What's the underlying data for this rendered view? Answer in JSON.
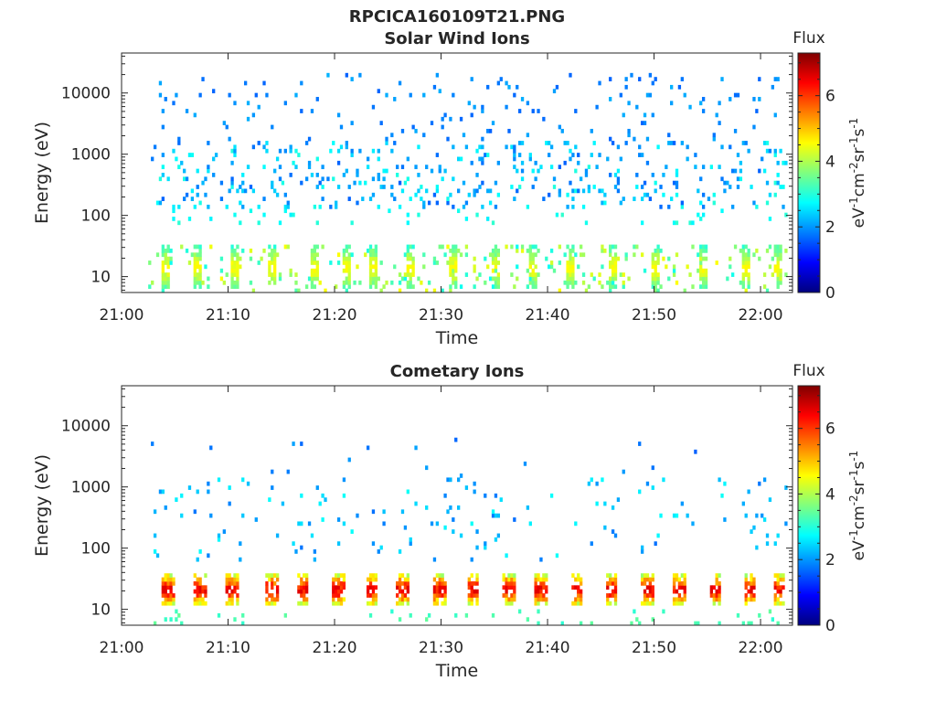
{
  "figure_title": "RPCICA160109T21.PNG",
  "colorbar_stops": [
    "#00007f",
    "#0000ff",
    "#007fff",
    "#00ffff",
    "#7fff7f",
    "#ffff00",
    "#ff7f00",
    "#ff0000",
    "#7f0000"
  ],
  "chart_data": [
    {
      "type": "heatmap",
      "title": "Solar Wind Ions",
      "xlabel": "Time",
      "ylabel": "Energy (eV)",
      "x_ticks": [
        "21:00",
        "21:10",
        "21:20",
        "21:30",
        "21:40",
        "21:50",
        "22:00"
      ],
      "x_tick_minutes": [
        0,
        10,
        20,
        30,
        40,
        50,
        60
      ],
      "x_range_minutes": [
        0,
        63
      ],
      "data_start_minute": 2.5,
      "data_end_minute": 62.5,
      "y_scale": "log",
      "y_ticks": [
        10,
        100,
        1000,
        10000
      ],
      "y_tick_labels": [
        "10",
        "100",
        "1000",
        "10000"
      ],
      "y_range": [
        5.5,
        45000
      ],
      "colorbar": {
        "label": "Flux",
        "unit": "eV-1cm-2sr-1s-1",
        "unit_parts": [
          {
            "text": "eV",
            "sup": "-1"
          },
          {
            "text": "cm",
            "sup": "-2"
          },
          {
            "text": "sr",
            "sup": "-1"
          },
          {
            "text": "s",
            "sup": "-1"
          }
        ],
        "range": [
          0,
          7.3
        ],
        "ticks": [
          "0",
          "2",
          "4",
          "6"
        ],
        "tick_values": [
          0,
          2,
          4,
          6
        ]
      },
      "bands": [
        {
          "emin": 130,
          "emax": 20000,
          "density": 0.045,
          "level_min": 1.6,
          "level_max": 2.2
        },
        {
          "emin": 120,
          "emax": 1600,
          "density": 0.06,
          "level_min": 2.0,
          "level_max": 3.0
        },
        {
          "emin": 70,
          "emax": 140,
          "density": 0.035,
          "level_min": 2.6,
          "level_max": 3.1
        },
        {
          "emin": 5.5,
          "emax": 35,
          "density": 0.08,
          "level_min": 2.8,
          "level_max": 4.6
        }
      ],
      "burst_minutes": [
        4,
        7,
        10.5,
        14,
        18,
        21,
        23.5,
        27,
        31,
        35,
        38.5,
        42,
        46,
        50,
        54.5,
        58.5,
        61.5
      ],
      "burst_band": {
        "emin": 6,
        "emax": 32,
        "level_min": 2.9,
        "level_max": 4.6,
        "width_minutes": 0.9
      }
    },
    {
      "type": "heatmap",
      "title": "Cometary Ions",
      "xlabel": "Time",
      "ylabel": "Energy (eV)",
      "x_ticks": [
        "21:00",
        "21:10",
        "21:20",
        "21:30",
        "21:40",
        "21:50",
        "22:00"
      ],
      "x_tick_minutes": [
        0,
        10,
        20,
        30,
        40,
        50,
        60
      ],
      "x_range_minutes": [
        0,
        63
      ],
      "data_start_minute": 2.5,
      "data_end_minute": 62.5,
      "y_scale": "log",
      "y_ticks": [
        10,
        100,
        1000,
        10000
      ],
      "y_tick_labels": [
        "10",
        "100",
        "1000",
        "10000"
      ],
      "y_range": [
        5.5,
        45000
      ],
      "colorbar": {
        "label": "Flux",
        "unit": "eV-1cm-2sr-1s-1",
        "unit_parts": [
          {
            "text": "eV",
            "sup": "-1"
          },
          {
            "text": "cm",
            "sup": "-2"
          },
          {
            "text": "sr",
            "sup": "-1"
          },
          {
            "text": "s",
            "sup": "-1"
          }
        ],
        "range": [
          0,
          7.3
        ],
        "ticks": [
          "0",
          "2",
          "4",
          "6"
        ],
        "tick_values": [
          0,
          2,
          4,
          6
        ]
      },
      "bands": [
        {
          "emin": 60,
          "emax": 1500,
          "density": 0.035,
          "level_min": 1.7,
          "level_max": 2.8
        },
        {
          "emin": 1500,
          "emax": 7000,
          "density": 0.006,
          "level_min": 1.6,
          "level_max": 2.1
        },
        {
          "emin": 5.5,
          "emax": 10,
          "density": 0.05,
          "level_min": 3.0,
          "level_max": 3.5
        }
      ],
      "burst_minutes": [
        4.3,
        7.3,
        10.3,
        13.9,
        16.9,
        20.3,
        23.4,
        26.3,
        29.8,
        32.9,
        36.2,
        39.3,
        42.6,
        45.9,
        49.2,
        52.3,
        55.6,
        58.9,
        61.6
      ],
      "burst_band": {
        "emin": 11,
        "emax": 40,
        "level_min": 3.3,
        "level_max": 6.6,
        "width_minutes": 1.2
      }
    }
  ]
}
